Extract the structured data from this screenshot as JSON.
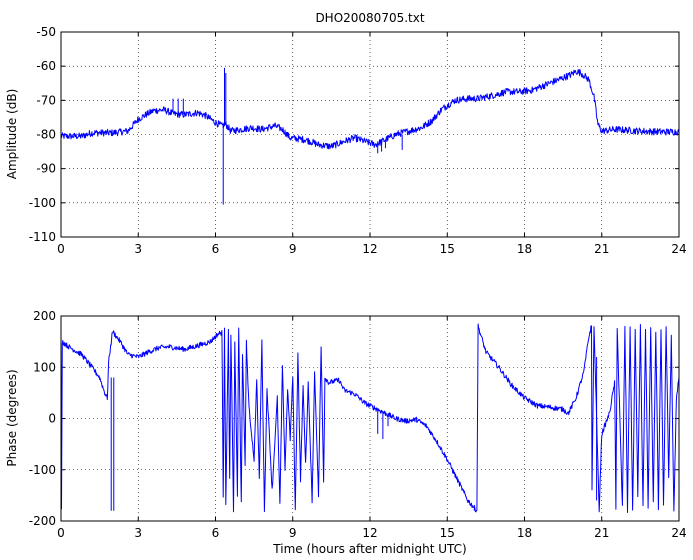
{
  "chart_data": [
    {
      "id": "amplitude",
      "type": "line",
      "title": "DHO20080705.txt",
      "xlabel": "",
      "ylabel": "Amplitude (dB)",
      "xlim": [
        0,
        24
      ],
      "ylim": [
        -110,
        -50
      ],
      "xticks": [
        0,
        3,
        6,
        9,
        12,
        15,
        18,
        21,
        24
      ],
      "yticks": [
        -110,
        -100,
        -90,
        -80,
        -70,
        -60,
        -50
      ],
      "grid": true,
      "color": "#0000ff",
      "noise": 1.0,
      "points": [
        [
          0,
          -80.5
        ],
        [
          0.8,
          -80.5
        ],
        [
          1.2,
          -79.5
        ],
        [
          1.6,
          -79.5
        ],
        [
          2.0,
          -79.5
        ],
        [
          2.6,
          -79
        ],
        [
          3.0,
          -75.5
        ],
        [
          3.3,
          -74.2
        ],
        [
          3.6,
          -73
        ],
        [
          4.0,
          -72.8
        ],
        [
          4.4,
          -74
        ],
        [
          4.8,
          -74.2
        ],
        [
          5.3,
          -73.6
        ],
        [
          5.6,
          -74.4
        ],
        [
          6.0,
          -76.5
        ],
        [
          6.25,
          -77.5
        ],
        [
          6.4,
          -77
        ],
        [
          6.6,
          -79
        ],
        [
          7.0,
          -78.5
        ],
        [
          7.4,
          -78
        ],
        [
          7.8,
          -78.5
        ],
        [
          8.3,
          -77.5
        ],
        [
          8.6,
          -78.5
        ],
        [
          8.9,
          -81
        ],
        [
          9.5,
          -81.5
        ],
        [
          10.0,
          -83
        ],
        [
          10.5,
          -83.5
        ],
        [
          11.0,
          -82
        ],
        [
          11.4,
          -81
        ],
        [
          11.8,
          -82
        ],
        [
          12.2,
          -83
        ],
        [
          12.6,
          -81.5
        ],
        [
          13.0,
          -80
        ],
        [
          13.5,
          -79
        ],
        [
          14.0,
          -78
        ],
        [
          14.4,
          -76
        ],
        [
          14.8,
          -72.5
        ],
        [
          15.3,
          -70
        ],
        [
          15.8,
          -69.5
        ],
        [
          16.2,
          -69.5
        ],
        [
          16.8,
          -68.5
        ],
        [
          17.3,
          -67.5
        ],
        [
          17.8,
          -67.5
        ],
        [
          18.3,
          -67
        ],
        [
          18.8,
          -65.5
        ],
        [
          19.3,
          -64
        ],
        [
          19.8,
          -62.5
        ],
        [
          20.0,
          -61.5
        ],
        [
          20.2,
          -62
        ],
        [
          20.5,
          -64
        ],
        [
          20.7,
          -69
        ],
        [
          20.85,
          -77
        ],
        [
          21.0,
          -79
        ],
        [
          21.5,
          -78.5
        ],
        [
          22.5,
          -79
        ],
        [
          23.3,
          -79.2
        ],
        [
          24,
          -79.2
        ]
      ],
      "spikes": [
        {
          "x": 4.35,
          "from": -73.5,
          "to": -69.5
        },
        {
          "x": 4.55,
          "from": -74.0,
          "to": -69.5
        },
        {
          "x": 4.75,
          "from": -74.0,
          "to": -69.5
        },
        {
          "x": 6.3,
          "from": -77.5,
          "to": -100.5
        },
        {
          "x": 6.35,
          "from": -77.0,
          "to": -60.5
        },
        {
          "x": 6.4,
          "from": -77.0,
          "to": -62.0
        },
        {
          "x": 12.3,
          "from": -82.0,
          "to": -85.5
        },
        {
          "x": 12.45,
          "from": -82.0,
          "to": -85.0
        },
        {
          "x": 12.6,
          "from": -81.5,
          "to": -84.0
        },
        {
          "x": 13.25,
          "from": -80.0,
          "to": -84.5
        }
      ]
    },
    {
      "id": "phase",
      "type": "line",
      "title": "",
      "xlabel": "Time (hours after midnight UTC)",
      "ylabel": "Phase (degrees)",
      "xlim": [
        0,
        24
      ],
      "ylim": [
        -200,
        200
      ],
      "xticks": [
        0,
        3,
        6,
        9,
        12,
        15,
        18,
        21,
        24
      ],
      "yticks": [
        -200,
        -100,
        0,
        100,
        200
      ],
      "grid": true,
      "color": "#0000ff",
      "noise": 5.0,
      "points": [
        [
          0,
          180
        ],
        [
          0.02,
          -180
        ],
        [
          0.05,
          150
        ],
        [
          0.3,
          140
        ],
        [
          0.8,
          125
        ],
        [
          1.2,
          100
        ],
        [
          1.5,
          80
        ],
        [
          1.7,
          50
        ],
        [
          1.8,
          40
        ],
        [
          1.85,
          110
        ],
        [
          2.0,
          170
        ],
        [
          2.3,
          150
        ],
        [
          2.6,
          125
        ],
        [
          3.0,
          120
        ],
        [
          3.4,
          130
        ],
        [
          3.8,
          138
        ],
        [
          4.2,
          140
        ],
        [
          4.8,
          135
        ],
        [
          5.3,
          142
        ],
        [
          5.8,
          150
        ],
        [
          6.1,
          165
        ],
        [
          6.25,
          168
        ],
        [
          6.3,
          -150
        ],
        [
          6.35,
          180
        ],
        [
          6.4,
          -170
        ],
        [
          6.5,
          170
        ],
        [
          6.55,
          -120
        ],
        [
          6.6,
          160
        ],
        [
          6.7,
          -180
        ],
        [
          6.75,
          150
        ],
        [
          6.85,
          -150
        ],
        [
          6.9,
          175
        ],
        [
          7.0,
          -160
        ],
        [
          7.05,
          120
        ],
        [
          7.15,
          -90
        ],
        [
          7.2,
          150
        ],
        [
          7.3,
          20
        ],
        [
          7.5,
          -80
        ],
        [
          7.6,
          80
        ],
        [
          7.7,
          -120
        ],
        [
          7.8,
          150
        ],
        [
          7.9,
          -180
        ],
        [
          8.0,
          60
        ],
        [
          8.2,
          -140
        ],
        [
          8.4,
          40
        ],
        [
          8.5,
          -170
        ],
        [
          8.6,
          100
        ],
        [
          8.7,
          -100
        ],
        [
          8.8,
          60
        ],
        [
          8.9,
          -40
        ],
        [
          9.0,
          80
        ],
        [
          9.1,
          -180
        ],
        [
          9.2,
          130
        ],
        [
          9.3,
          -120
        ],
        [
          9.4,
          60
        ],
        [
          9.5,
          -90
        ],
        [
          9.6,
          70
        ],
        [
          9.75,
          -160
        ],
        [
          9.85,
          90
        ],
        [
          10.0,
          -150
        ],
        [
          10.1,
          140
        ],
        [
          10.2,
          -120
        ],
        [
          10.25,
          80
        ],
        [
          10.4,
          70
        ],
        [
          10.8,
          75
        ],
        [
          11.0,
          55
        ],
        [
          11.4,
          48
        ],
        [
          11.8,
          30
        ],
        [
          12.2,
          20
        ],
        [
          12.6,
          10
        ],
        [
          13.0,
          0
        ],
        [
          13.4,
          -5
        ],
        [
          13.8,
          -2
        ],
        [
          14.2,
          -15
        ],
        [
          14.6,
          -45
        ],
        [
          15.0,
          -80
        ],
        [
          15.4,
          -120
        ],
        [
          15.8,
          -160
        ],
        [
          16.15,
          -180
        ],
        [
          16.2,
          180
        ],
        [
          16.5,
          130
        ],
        [
          17.0,
          100
        ],
        [
          17.5,
          65
        ],
        [
          18.0,
          40
        ],
        [
          18.5,
          25
        ],
        [
          19.0,
          22
        ],
        [
          19.5,
          18
        ],
        [
          19.7,
          10
        ],
        [
          20.0,
          40
        ],
        [
          20.3,
          90
        ],
        [
          20.5,
          160
        ],
        [
          20.6,
          180
        ],
        [
          20.62,
          -140
        ],
        [
          20.7,
          180
        ],
        [
          20.9,
          -180
        ],
        [
          21.0,
          -30
        ],
        [
          21.3,
          10
        ],
        [
          21.5,
          70
        ],
        [
          21.55,
          -180
        ],
        [
          21.6,
          180
        ],
        [
          21.8,
          -170
        ],
        [
          21.9,
          175
        ],
        [
          22.0,
          -180
        ],
        [
          22.1,
          180
        ],
        [
          22.2,
          -180
        ],
        [
          22.3,
          170
        ],
        [
          22.4,
          -150
        ],
        [
          22.5,
          180
        ],
        [
          22.6,
          -170
        ],
        [
          22.7,
          175
        ],
        [
          22.8,
          -180
        ],
        [
          22.9,
          180
        ],
        [
          23.0,
          -160
        ],
        [
          23.1,
          170
        ],
        [
          23.2,
          -180
        ],
        [
          23.3,
          175
        ],
        [
          23.4,
          -170
        ],
        [
          23.5,
          180
        ],
        [
          23.6,
          -120
        ],
        [
          23.7,
          160
        ],
        [
          23.8,
          -180
        ],
        [
          23.9,
          40
        ],
        [
          24,
          80
        ]
      ],
      "spikes": [
        {
          "x": 1.95,
          "from": 80,
          "to": -180
        },
        {
          "x": 2.05,
          "from": 80,
          "to": -180
        },
        {
          "x": 12.3,
          "from": 20,
          "to": -30
        },
        {
          "x": 12.5,
          "from": 15,
          "to": -40
        },
        {
          "x": 12.7,
          "from": 10,
          "to": -15
        },
        {
          "x": 16.05,
          "from": -170,
          "to": -180
        },
        {
          "x": 20.8,
          "from": 120,
          "to": -160
        }
      ]
    }
  ]
}
